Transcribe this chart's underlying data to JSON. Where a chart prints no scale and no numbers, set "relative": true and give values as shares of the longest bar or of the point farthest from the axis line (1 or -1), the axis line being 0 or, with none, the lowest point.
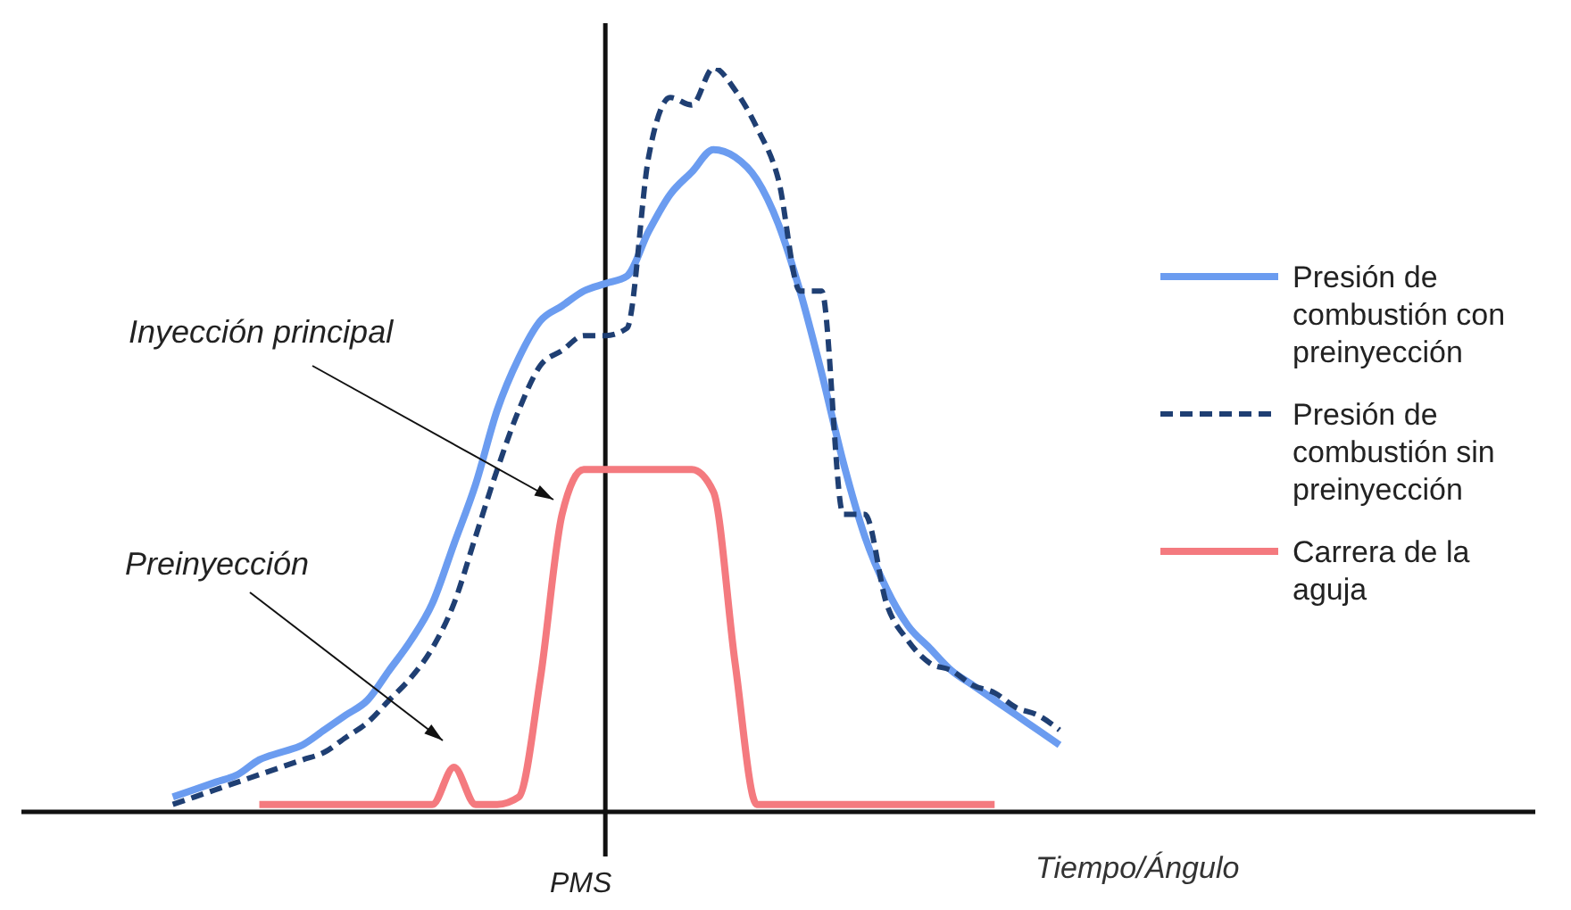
{
  "chart_data": {
    "type": "line",
    "relative": true,
    "xlabel": "Tiempo/Ángulo",
    "legend": "right",
    "marker": "none",
    "annotations": [
      "Inyección principal",
      "Preinyección",
      "PMS"
    ],
    "categories": [
      null,
      null,
      null,
      null,
      null,
      null,
      null,
      null,
      null,
      null,
      null,
      null,
      null,
      null,
      null,
      null,
      null,
      null,
      null,
      null,
      null,
      null,
      null,
      null,
      null,
      null,
      null,
      null,
      null,
      null,
      null,
      null,
      null,
      null,
      null,
      null,
      null,
      null,
      null,
      null,
      null,
      null,
      null,
      null,
      null,
      null,
      null,
      null,
      null,
      null,
      null,
      null,
      null,
      null,
      null,
      null,
      null,
      null,
      null,
      null,
      null,
      null,
      null,
      null,
      null,
      null,
      null,
      null,
      null,
      null,
      null
    ],
    "series": [
      {
        "name": "Presión de combustión con preinyección",
        "color": "#6b9cf0",
        "line_style": "solid",
        "values": [
          null,
          null,
          null,
          null,
          null,
          null,
          null,
          0.02,
          0.03,
          0.04,
          0.05,
          0.07,
          0.08,
          0.09,
          0.11,
          0.13,
          0.15,
          0.19,
          0.23,
          0.28,
          0.36,
          0.44,
          0.54,
          0.61,
          0.66,
          0.68,
          0.7,
          0.71,
          0.72,
          0.78,
          0.83,
          0.86,
          0.89,
          0.88,
          0.85,
          0.79,
          0.7,
          0.59,
          0.47,
          0.37,
          0.3,
          0.25,
          0.22,
          0.19,
          0.17,
          0.15,
          0.13,
          0.11,
          0.09,
          null,
          null,
          null,
          null,
          null,
          null,
          null,
          null,
          null,
          null,
          null,
          null,
          null,
          null,
          null,
          null,
          null,
          null,
          null,
          null,
          null,
          null
        ]
      },
      {
        "name": "Presión de combustión sin preinyección",
        "color": "#1f3f73",
        "line_style": "dashed",
        "values": [
          null,
          null,
          null,
          null,
          null,
          null,
          null,
          0.01,
          0.02,
          0.03,
          0.04,
          0.05,
          0.06,
          0.07,
          0.08,
          0.1,
          0.12,
          0.15,
          0.18,
          0.22,
          0.28,
          0.37,
          0.46,
          0.54,
          0.6,
          0.62,
          0.64,
          0.64,
          0.65,
          0.88,
          0.96,
          0.95,
          1,
          0.97,
          0.92,
          0.85,
          0.7,
          0.7,
          0.4,
          0.4,
          0.28,
          0.23,
          0.2,
          0.19,
          0.17,
          0.16,
          0.14,
          0.13,
          0.11,
          null,
          null,
          null,
          null,
          null,
          null,
          null,
          null,
          null,
          null,
          null,
          null,
          null,
          null,
          null,
          null,
          null,
          null,
          null,
          null,
          null,
          null
        ]
      },
      {
        "name": "Carrera de la aguja",
        "color": "#f47a7f",
        "line_style": "solid",
        "values": [
          null,
          null,
          null,
          null,
          null,
          null,
          null,
          null,
          null,
          null,
          null,
          0.01,
          0.01,
          0.01,
          0.01,
          0.01,
          0.01,
          0.01,
          0.01,
          0.01,
          0.06,
          0.01,
          0.01,
          0.02,
          0.18,
          0.4,
          0.46,
          0.46,
          0.46,
          0.46,
          0.46,
          0.46,
          0.43,
          0.2,
          0.01,
          0.01,
          0.01,
          0.01,
          0.01,
          0.01,
          0.01,
          0.01,
          0.01,
          0.01,
          0.01,
          0.01,
          null,
          null,
          null,
          null,
          null,
          null,
          null,
          null,
          null,
          null,
          null,
          null,
          null,
          null,
          null,
          null,
          null,
          null,
          null,
          null,
          null,
          null,
          null,
          null,
          null
        ]
      }
    ]
  }
}
